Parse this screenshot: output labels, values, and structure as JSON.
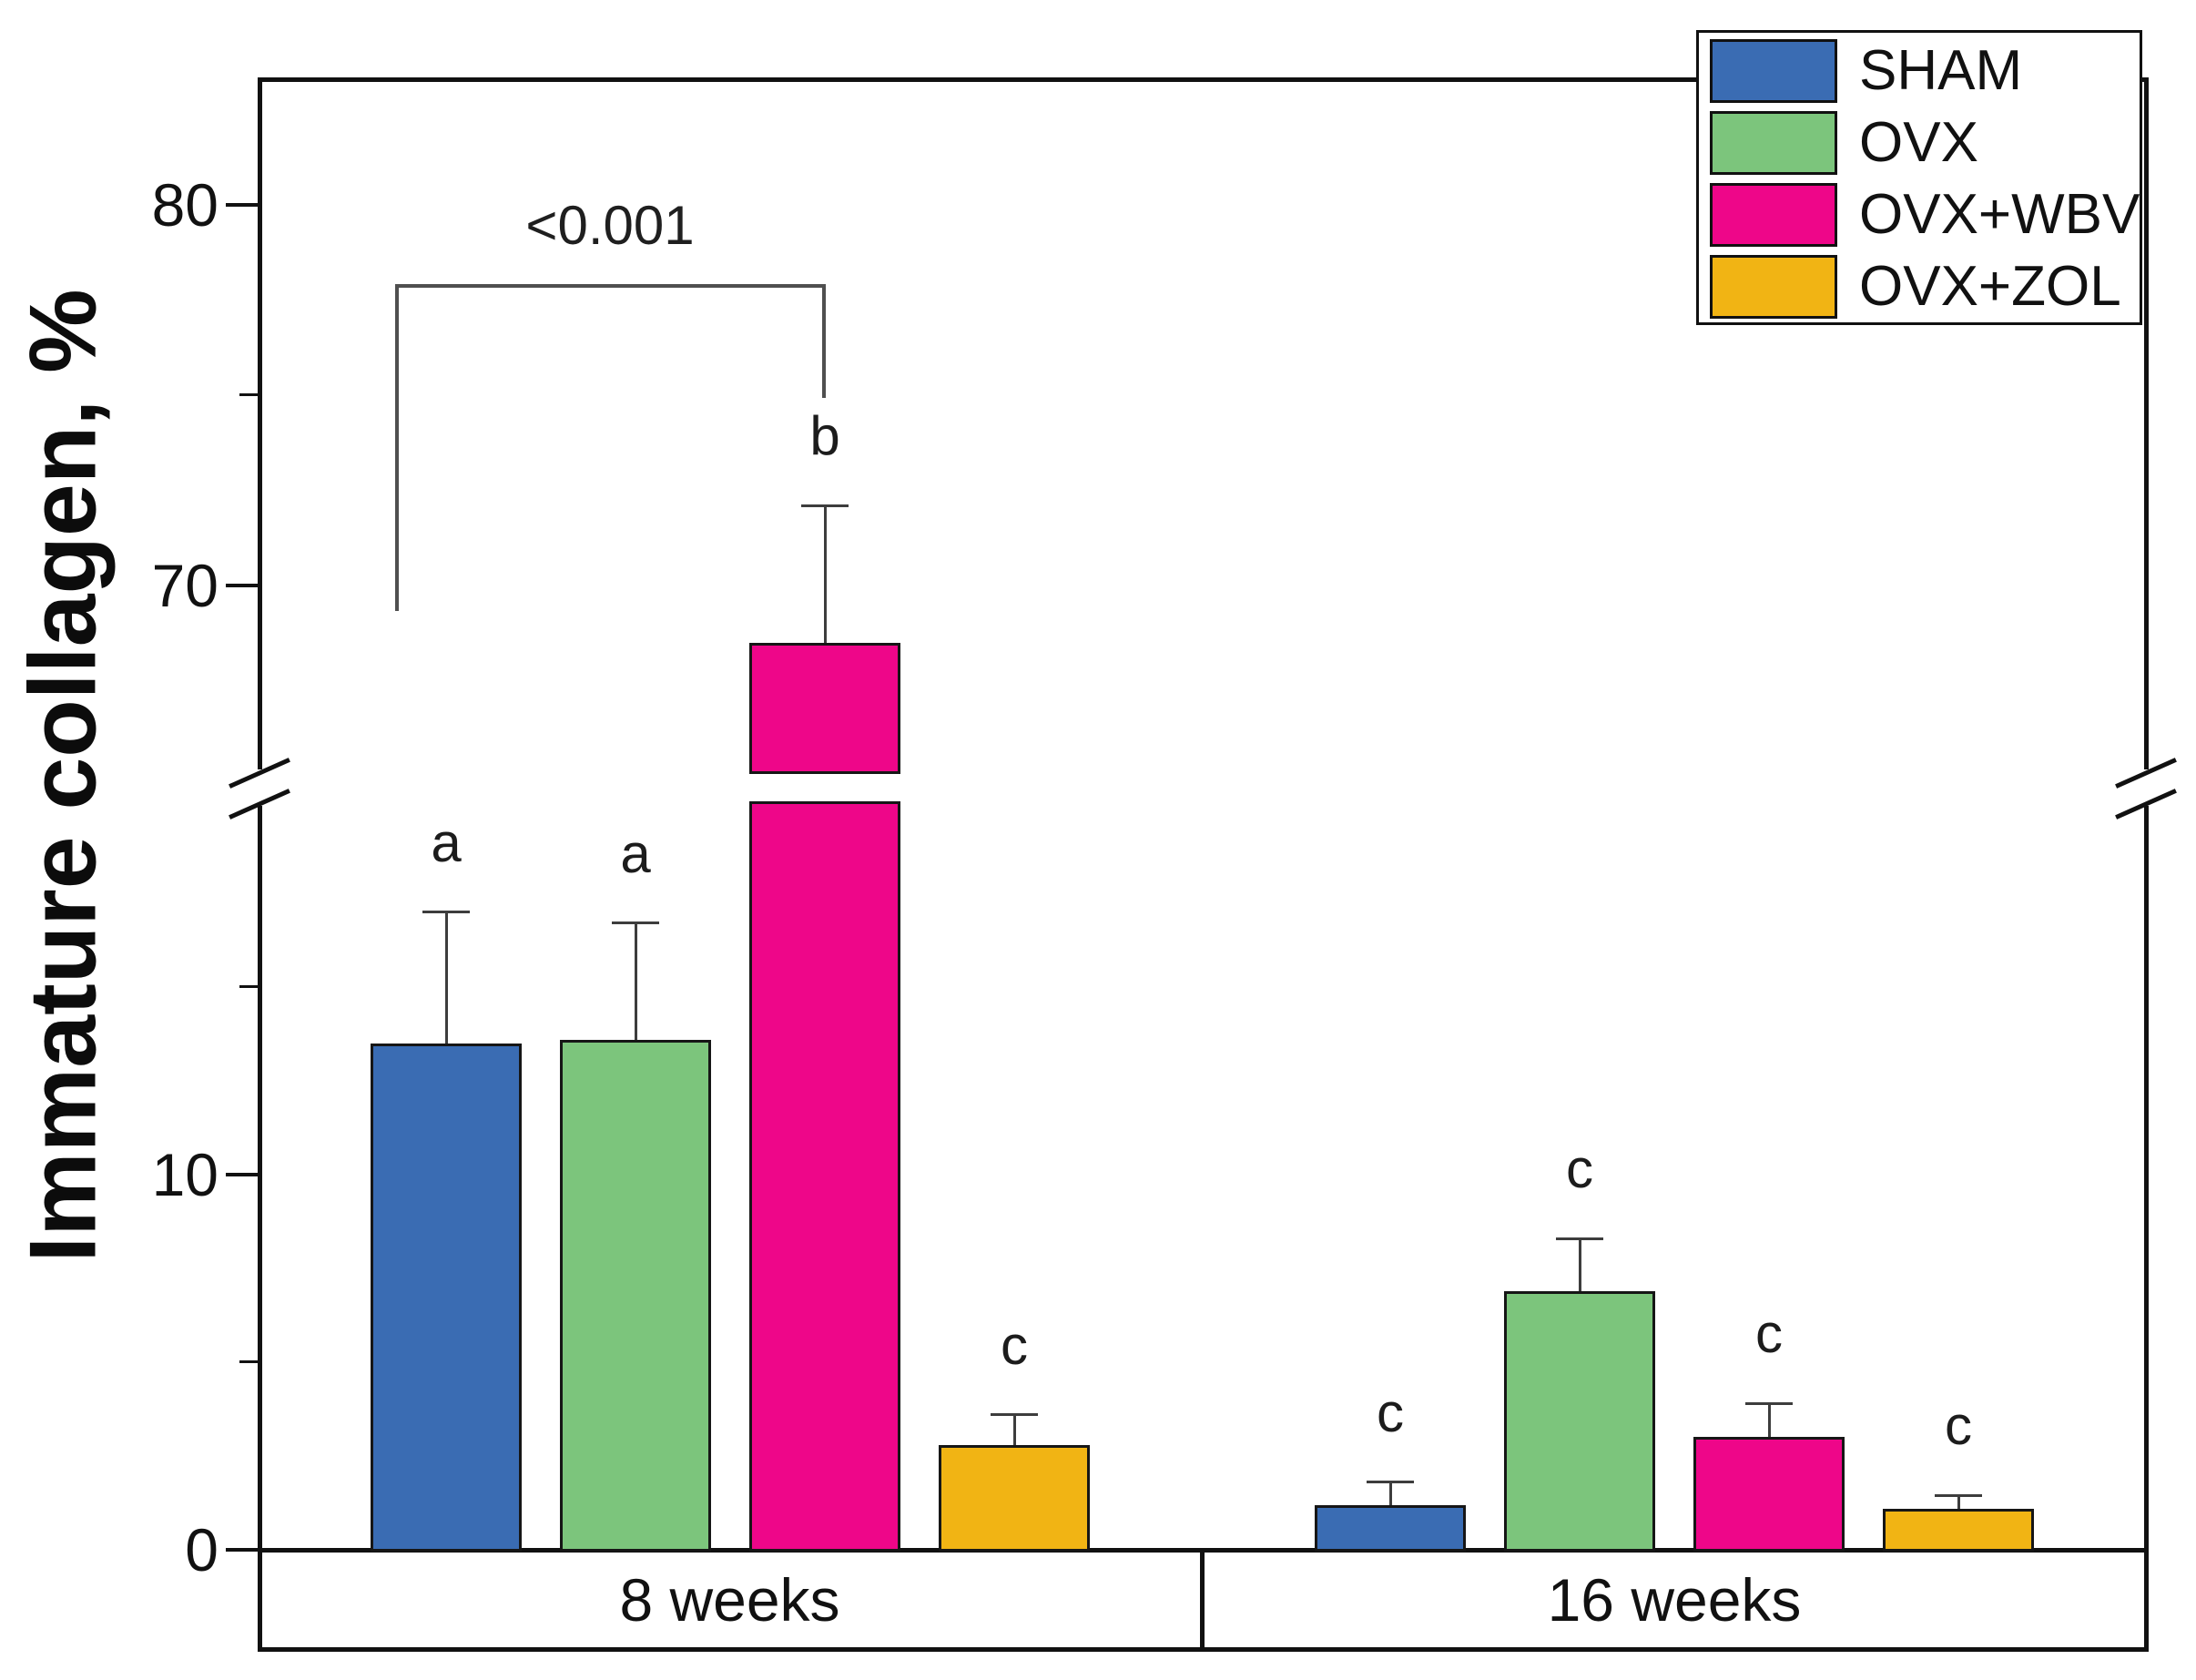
{
  "figure": {
    "background": "#ffffff"
  },
  "chart_data": {
    "type": "bar",
    "title": "",
    "ylabel": "Immature collagen, %",
    "xlabel": "",
    "groups": [
      "8 weeks",
      "16 weeks"
    ],
    "series": [
      {
        "name": "SHAM",
        "color": "#3a6cb3",
        "values": [
          13.5,
          1.2
        ],
        "errors": [
          3.5,
          0.6
        ],
        "letters": [
          "a",
          "c"
        ]
      },
      {
        "name": "OVX",
        "color": "#7cc57c",
        "values": [
          13.6,
          6.9
        ],
        "errors": [
          3.1,
          1.4
        ],
        "letters": [
          "a",
          "c"
        ]
      },
      {
        "name": "OVX+WBV",
        "color": "#ee0689",
        "values": [
          68.5,
          3.0
        ],
        "errors": [
          3.6,
          0.9
        ],
        "letters": [
          "b",
          "c"
        ]
      },
      {
        "name": "OVX+ZOL",
        "color": "#f1b414",
        "values": [
          2.8,
          1.1
        ],
        "errors": [
          0.8,
          0.35
        ],
        "letters": [
          "c",
          "c"
        ]
      }
    ],
    "y_axis": {
      "unit": "%",
      "axis_break": true,
      "lower_segment": {
        "range": [
          0,
          20
        ],
        "major_ticks": [
          0,
          10
        ],
        "minor_ticks": [
          5,
          15
        ]
      },
      "upper_segment": {
        "range": [
          65,
          85
        ],
        "major_ticks": [
          70,
          80
        ],
        "minor_ticks": [
          75
        ]
      }
    },
    "significance": {
      "label": "<0.001",
      "group": "8 weeks",
      "between": [
        "SHAM",
        "OVX+WBV"
      ]
    },
    "legend": {
      "position": "top-right",
      "entries": [
        "SHAM",
        "OVX",
        "OVX+WBV",
        "OVX+ZOL"
      ]
    },
    "colors": {
      "axis": "#111111",
      "error_bar": "#3d3d3d",
      "bracket": "#4f4f4f",
      "text": "#111111"
    },
    "grid": false
  }
}
